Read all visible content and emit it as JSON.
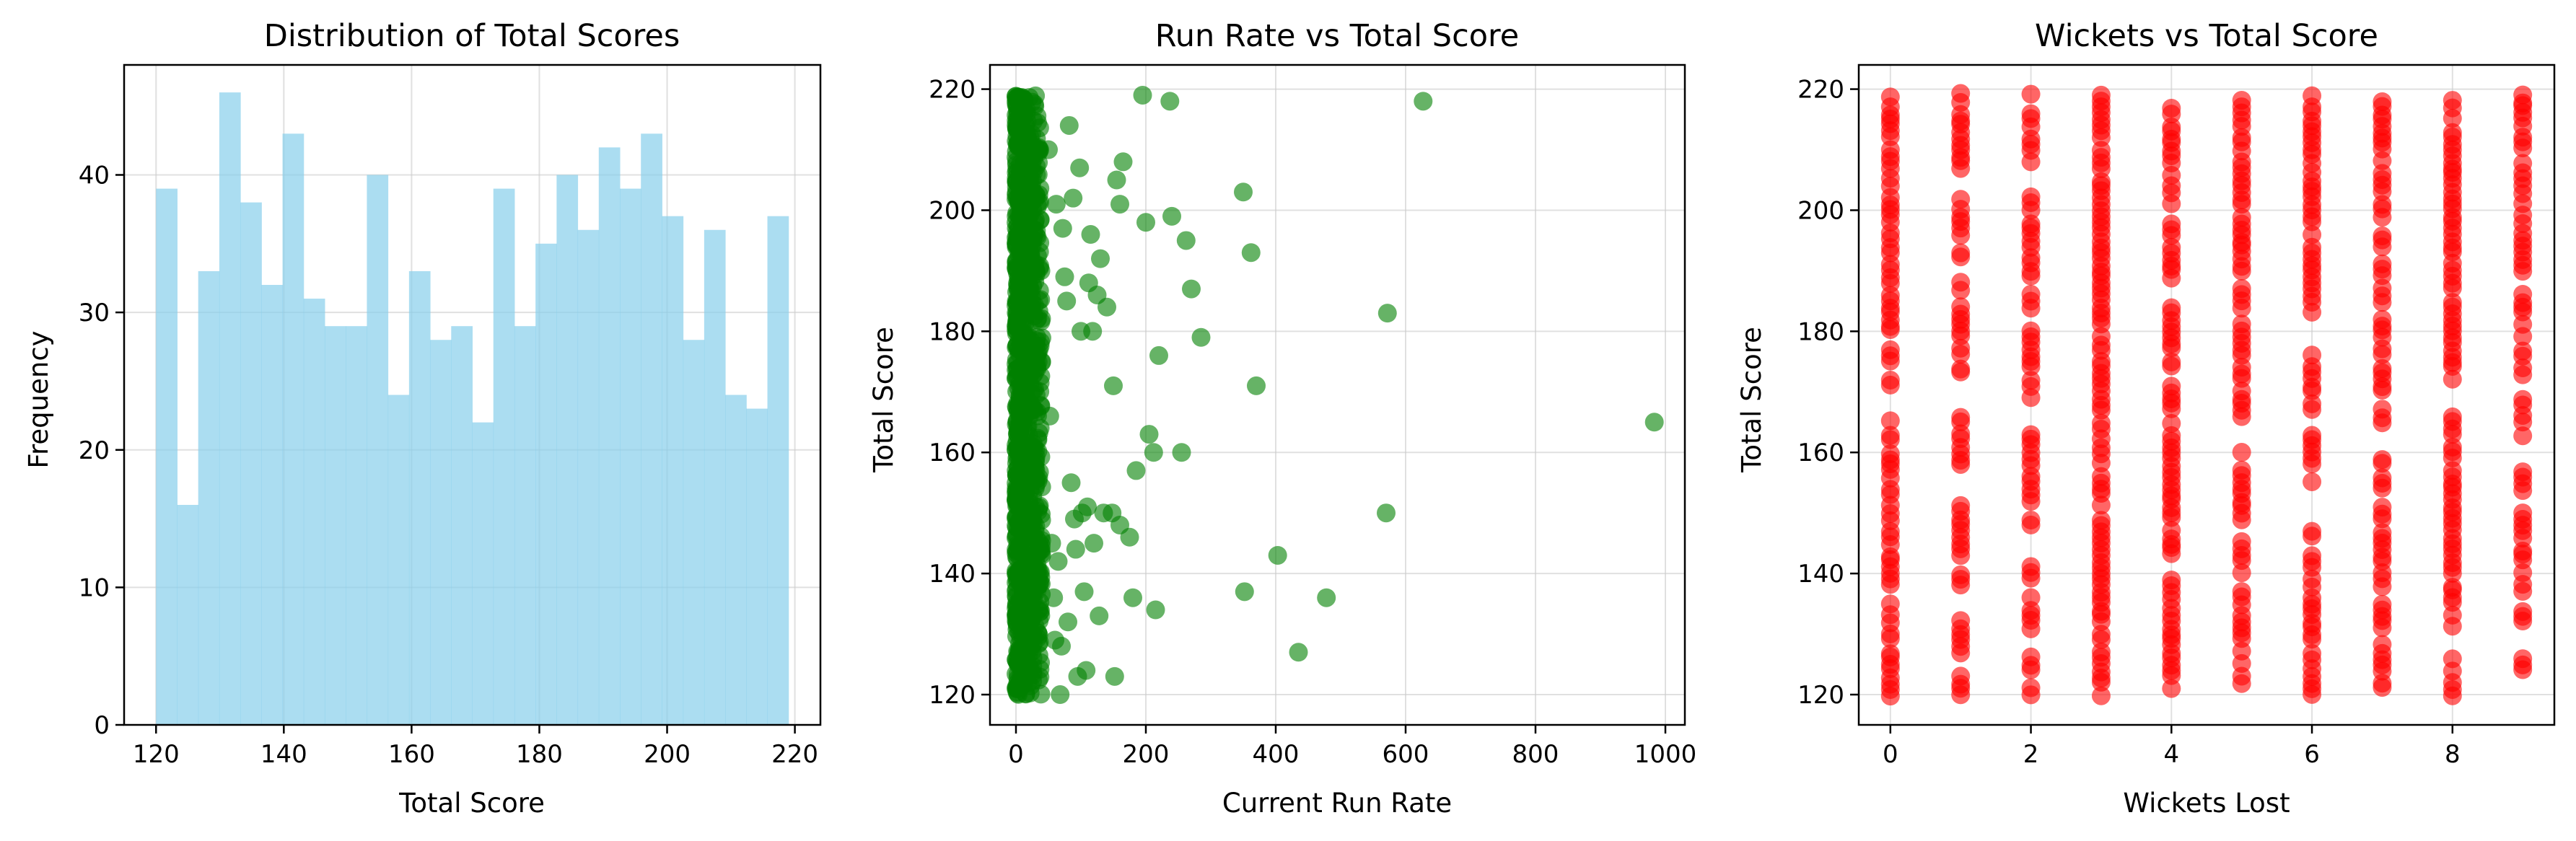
{
  "colors": {
    "hist": "#87CEEB",
    "scatter1": "#008000",
    "scatter2": "#FF0000",
    "grid": "#cccccc",
    "axis": "#000000"
  },
  "chart_data": [
    {
      "type": "bar",
      "title": "Distribution of Total Scores",
      "xlabel": "Total Score",
      "ylabel": "Frequency",
      "xlim": [
        115,
        224
      ],
      "ylim": [
        0,
        48
      ],
      "xticks": [
        120,
        140,
        160,
        180,
        200,
        220
      ],
      "yticks": [
        0,
        10,
        20,
        30,
        40
      ],
      "grid": true,
      "bin_start": 120,
      "bin_width": 3.3,
      "values": [
        39,
        16,
        33,
        46,
        38,
        32,
        43,
        31,
        29,
        29,
        40,
        24,
        33,
        28,
        29,
        22,
        39,
        29,
        35,
        40,
        36,
        42,
        39,
        43,
        37,
        28,
        36,
        24,
        23,
        37
      ]
    },
    {
      "type": "scatter",
      "title": "Run Rate vs Total Score",
      "xlabel": "Current Run Rate",
      "ylabel": "Total Score",
      "xlim": [
        -40,
        1030
      ],
      "ylim": [
        115,
        224
      ],
      "xticks": [
        0,
        200,
        400,
        600,
        800,
        1000
      ],
      "yticks": [
        120,
        140,
        160,
        180,
        200,
        220
      ],
      "grid": true,
      "cluster": {
        "x_range": [
          0,
          40
        ],
        "y_range": [
          120,
          219
        ],
        "count": 850
      },
      "x": [
        983,
        627,
        572,
        570,
        478,
        435,
        403,
        370,
        362,
        352,
        350,
        285,
        270,
        262,
        255,
        240,
        237,
        220,
        215,
        212,
        205,
        200,
        195,
        185,
        180,
        175,
        165,
        160,
        160,
        155,
        152,
        150,
        148,
        140,
        135,
        130,
        128,
        125,
        120,
        118,
        115,
        112,
        110,
        108,
        105,
        102,
        100,
        98,
        95,
        92,
        90,
        88,
        85,
        82,
        80,
        78,
        75,
        72,
        70,
        68,
        65,
        62,
        60,
        58,
        55,
        52,
        50
      ],
      "y": [
        165,
        218,
        183,
        150,
        136,
        127,
        143,
        171,
        193,
        137,
        203,
        179,
        187,
        195,
        160,
        199,
        218,
        176,
        134,
        160,
        163,
        198,
        219,
        157,
        136,
        146,
        208,
        201,
        148,
        205,
        123,
        171,
        150,
        184,
        150,
        192,
        133,
        186,
        145,
        180,
        196,
        188,
        151,
        124,
        137,
        150,
        180,
        207,
        123,
        144,
        149,
        202,
        155,
        214,
        132,
        185,
        189,
        197,
        128,
        120,
        142,
        201,
        129,
        136,
        145,
        166,
        210
      ]
    },
    {
      "type": "scatter",
      "title": "Wickets vs Total Score",
      "xlabel": "Wickets Lost",
      "ylabel": "Total Score",
      "xlim": [
        -0.45,
        9.45
      ],
      "ylim": [
        115,
        224
      ],
      "xticks": [
        0,
        2,
        4,
        6,
        8
      ],
      "yticks": [
        120,
        140,
        160,
        180,
        200,
        220
      ],
      "grid": true,
      "columns": [
        {
          "x": 0,
          "y_min": 120,
          "y_max": 219,
          "gaps": [
            [
              166,
              170
            ]
          ]
        },
        {
          "x": 1,
          "y_min": 120,
          "y_max": 219,
          "gaps": [
            [
              133,
              137
            ],
            [
              153,
              157
            ],
            [
              167,
              171
            ],
            [
              203,
              206
            ]
          ]
        },
        {
          "x": 2,
          "y_min": 120,
          "y_max": 219,
          "gaps": [
            [
              127,
              130
            ],
            [
              144,
              147
            ],
            [
              164,
              168
            ],
            [
              203,
              206
            ]
          ]
        },
        {
          "x": 3,
          "y_min": 120,
          "y_max": 219,
          "gaps": []
        },
        {
          "x": 4,
          "y_min": 121,
          "y_max": 217,
          "gaps": [
            [
              185,
              188
            ]
          ]
        },
        {
          "x": 5,
          "y_min": 121,
          "y_max": 218,
          "gaps": [
            [
              161,
              165
            ]
          ]
        },
        {
          "x": 6,
          "y_min": 120,
          "y_max": 219,
          "gaps": [
            [
              148,
              152
            ],
            [
              178,
              182
            ]
          ]
        },
        {
          "x": 7,
          "y_min": 120,
          "y_max": 219,
          "gaps": [
            [
              160,
              164
            ]
          ]
        },
        {
          "x": 8,
          "y_min": 120,
          "y_max": 218,
          "gaps": [
            [
              127,
              130
            ],
            [
              167,
              170
            ]
          ]
        },
        {
          "x": 9,
          "y_min": 123,
          "y_max": 219,
          "gaps": [
            [
              127,
              131
            ],
            [
              158,
              161
            ]
          ]
        }
      ]
    }
  ]
}
